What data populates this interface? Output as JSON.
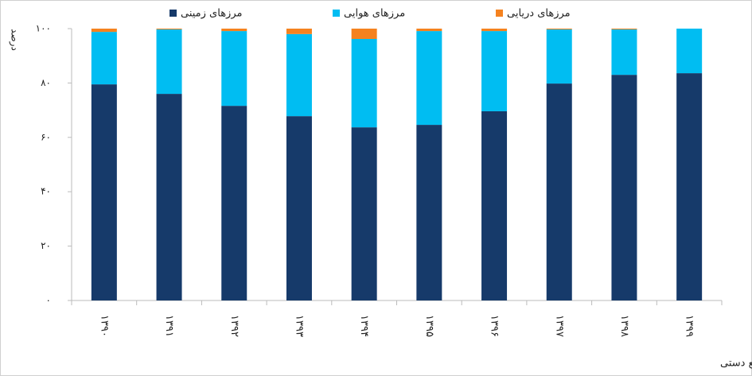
{
  "chart_data": {
    "type": "stacked-bar",
    "y_label": "درصد",
    "source": "منبع: وزارت میراث فرهنگی، گردشگری و صنایع دستی",
    "categories": [
      "۱۳۹۰",
      "۱۳۹۱",
      "۱۳۹۲",
      "۱۳۹۳",
      "۱۳۹۴",
      "۱۳۹۵",
      "۱۳۹۶",
      "۱۳۹۷",
      "۱۳۹۸",
      "۱۳۹۹"
    ],
    "series": [
      {
        "name": "مرزهای زمینی",
        "color": "#163a6a",
        "values": [
          79.5,
          76,
          71.6,
          67.8,
          63.7,
          64.6,
          69.6,
          79.8,
          83,
          83.6
        ]
      },
      {
        "name": "مرزهای هوایی",
        "color": "#00bdf2",
        "values": [
          19.3,
          23.7,
          27.5,
          30.2,
          32.5,
          34.5,
          29.5,
          19.9,
          16.7,
          16.4
        ]
      },
      {
        "name": "مرزهای دریایی",
        "color": "#f5821f",
        "values": [
          1.2,
          0.3,
          0.9,
          2,
          3.8,
          0.9,
          0.9,
          0.3,
          0.3,
          0
        ]
      }
    ],
    "ylim": [
      0,
      100
    ],
    "yticks": [
      {
        "value": 0,
        "label": "۰"
      },
      {
        "value": 20,
        "label": "۲۰"
      },
      {
        "value": 40,
        "label": "۴۰"
      },
      {
        "value": 60,
        "label": "۶۰"
      },
      {
        "value": 80,
        "label": "۸۰"
      },
      {
        "value": 100,
        "label": "۱۰۰"
      }
    ],
    "grid": false
  }
}
